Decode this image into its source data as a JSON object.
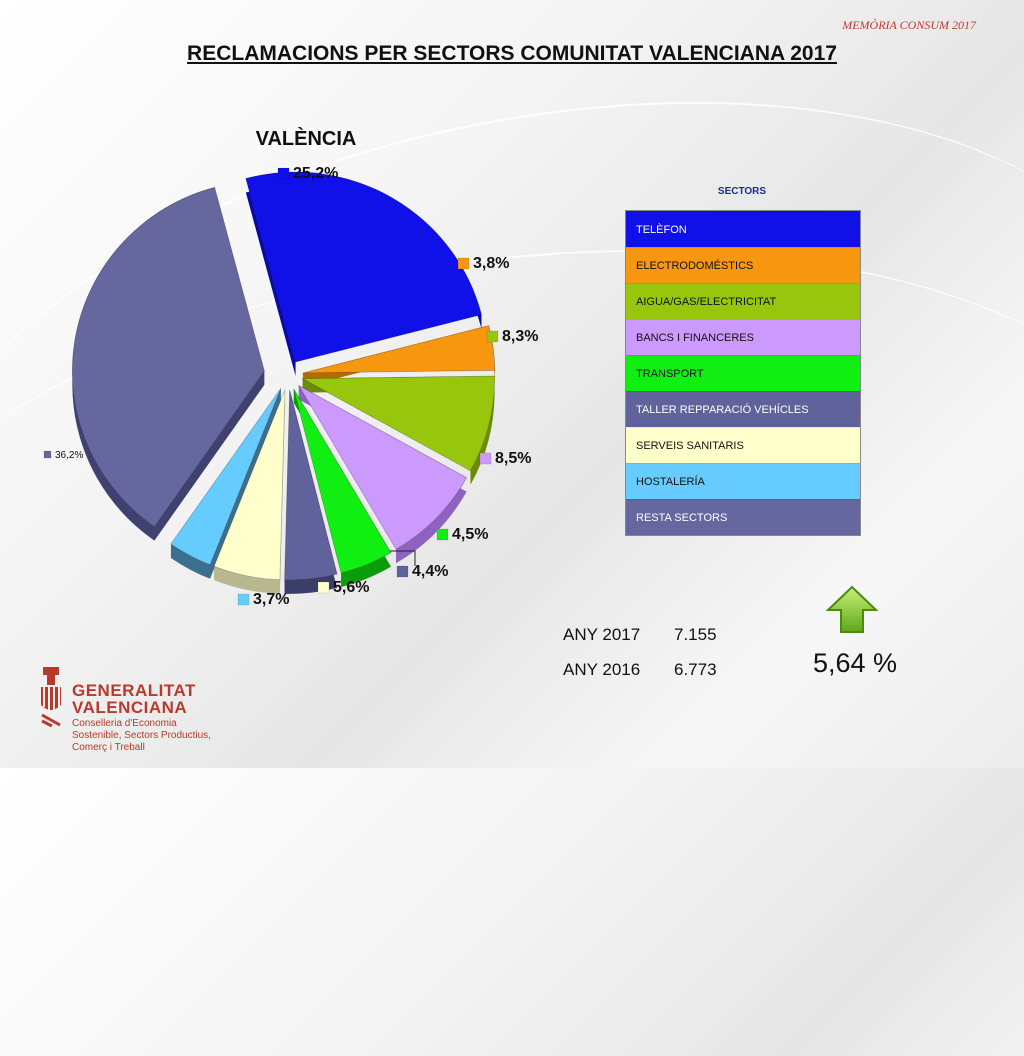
{
  "header": {
    "tag": "MEMÒRIA CONSUM 2017",
    "title": "RECLAMACIONS PER SECTORS COMUNITAT VALENCIANA 2017"
  },
  "chart_data": {
    "type": "pie",
    "title": "VALÈNCIA",
    "legend_title": "SECTORS",
    "slices": [
      {
        "label": "TELÈFON",
        "value": 25.2,
        "display": "25,2%",
        "color": "#1010e8",
        "side": "#0a0aa8"
      },
      {
        "label": "ELECTRODOMÉSTICS",
        "value": 3.8,
        "display": "3,8%",
        "color": "#f7960f",
        "side": "#b56a08"
      },
      {
        "label": "AIGUA/GAS/ELECTRICITAT",
        "value": 8.3,
        "display": "8,3%",
        "color": "#97c60c",
        "side": "#6a8c08"
      },
      {
        "label": "BANCS I FINANCERES",
        "value": 8.5,
        "display": "8,5%",
        "color": "#cc99ff",
        "side": "#8e63c0"
      },
      {
        "label": "TRANSPORT",
        "value": 4.5,
        "display": "4,5%",
        "color": "#11ee11",
        "side": "#0a9c0a"
      },
      {
        "label": "TALLER REPPARACIÓ VEHÍCLES",
        "value": 4.4,
        "display": "4,4%",
        "color": "#60629c",
        "side": "#3c3e6a"
      },
      {
        "label": "SERVEIS SANITARIS",
        "value": 5.6,
        "display": "5,6%",
        "color": "#ffffcc",
        "side": "#b8b890"
      },
      {
        "label": "HOSTALERÍA",
        "value": 3.7,
        "display": "3,7%",
        "color": "#66ccff",
        "side": "#3a6f8e"
      },
      {
        "label": "RESTA SECTORS",
        "value": 36.2,
        "display": "36,2%",
        "color": "#65679e",
        "side": "#3f4170"
      }
    ]
  },
  "totals": [
    {
      "year": "ANY 2017",
      "value": "7.155"
    },
    {
      "year": "ANY 2016",
      "value": "6.773"
    }
  ],
  "change": "5,64 %",
  "trend_icon": "arrow-up-icon",
  "logo": {
    "name_line1": "GENERALITAT",
    "name_line2": "VALENCIANA",
    "sub_line1": "Conselleria d'Economia",
    "sub_line2": "Sostenible, Sectors Productius,",
    "sub_line3": "Comerç i Treball"
  }
}
